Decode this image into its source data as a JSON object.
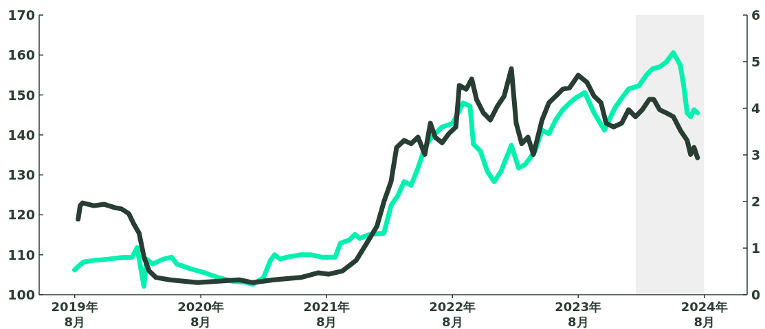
{
  "chart_data": {
    "type": "line",
    "xlim": [
      "2019-04-20",
      "2024-12-03"
    ],
    "ylim": [
      100,
      170
    ],
    "y2lim": [
      0,
      6
    ],
    "xticks": [
      {
        "value": "2019-08",
        "label": "2019年\n8月"
      },
      {
        "value": "2020-08",
        "label": "2020年\n8月"
      },
      {
        "value": "2021-08",
        "label": "2021年\n8月"
      },
      {
        "value": "2022-08",
        "label": "2022年\n8月"
      },
      {
        "value": "2023-08",
        "label": "2023年\n8月"
      },
      {
        "value": "2024-08",
        "label": "2024年\n8月"
      }
    ],
    "yticks": [
      100,
      110,
      120,
      130,
      140,
      150,
      160,
      170
    ],
    "y2ticks": [
      0,
      1,
      2,
      3,
      4,
      5,
      6
    ],
    "bands": [
      {
        "axis": "x",
        "from": "2024-01-15",
        "to": "2024-07-31",
        "color": "#efefef"
      }
    ],
    "series": [
      {
        "color": "#00f0b0",
        "x": [
          "2019-08-01",
          "2019-08-13",
          "2019-08-27",
          "2019-09-26",
          "2019-11-06",
          "2019-12-15",
          "2020-01-15",
          "2020-01-29",
          "2020-02-18",
          "2020-02-26",
          "2020-03-14",
          "2020-04-14",
          "2020-05-09",
          "2020-05-23",
          "2020-07-02",
          "2020-08-12",
          "2020-09-21",
          "2020-10-31",
          "2020-12-10",
          "2020-12-30",
          "2021-01-30",
          "2021-02-19",
          "2021-03-03",
          "2021-03-19",
          "2021-04-08",
          "2021-05-18",
          "2021-06-17",
          "2021-07-17",
          "2021-08-26",
          "2021-09-10",
          "2021-10-06",
          "2021-10-22",
          "2021-11-05",
          "2021-12-05",
          "2022-01-14",
          "2022-02-04",
          "2022-02-24",
          "2022-03-14",
          "2022-04-03",
          "2022-04-23",
          "2022-05-13",
          "2022-06-02",
          "2022-07-02",
          "2022-08-02",
          "2022-09-01",
          "2022-09-21",
          "2022-10-01",
          "2022-10-21",
          "2022-11-10",
          "2022-11-30",
          "2022-12-20",
          "2023-01-19",
          "2023-02-09",
          "2023-02-28",
          "2023-03-29",
          "2023-04-18",
          "2023-05-08",
          "2023-05-28",
          "2023-06-17",
          "2023-07-07",
          "2023-07-27",
          "2023-08-20",
          "2023-09-16",
          "2023-10-16",
          "2023-11-15",
          "2023-12-05",
          "2023-12-25",
          "2024-01-24",
          "2024-02-14",
          "2024-03-04",
          "2024-03-24",
          "2024-04-13",
          "2024-05-03",
          "2024-05-23",
          "2024-06-02",
          "2024-06-12",
          "2024-06-22",
          "2024-07-02",
          "2024-07-12"
        ],
        "values": [
          106.2,
          107.2,
          108.2,
          108.6,
          108.9,
          109.3,
          109.4,
          111.8,
          102.1,
          108.9,
          107.7,
          108.9,
          109.4,
          107.7,
          106.5,
          105.5,
          104.3,
          103.4,
          103.1,
          102.6,
          104.3,
          108.6,
          110.0,
          108.9,
          109.4,
          110.0,
          110.0,
          109.4,
          109.4,
          112.9,
          113.7,
          115.1,
          114.1,
          115.1,
          115.4,
          122.3,
          124.9,
          128.3,
          127.4,
          131.7,
          136.9,
          139.5,
          142.0,
          142.9,
          148.0,
          147.2,
          137.7,
          136.0,
          130.9,
          128.3,
          130.9,
          137.4,
          131.7,
          132.6,
          136.0,
          141.2,
          140.3,
          143.8,
          146.3,
          148.0,
          149.4,
          150.6,
          145.5,
          141.2,
          146.7,
          149.2,
          151.5,
          152.3,
          154.9,
          156.6,
          157.0,
          158.3,
          160.6,
          157.5,
          152.3,
          145.5,
          144.6,
          146.3,
          145.5
        ]
      },
      {
        "color": "#283d33",
        "axis": "y2",
        "x": [
          "2019-08-11",
          "2019-08-17",
          "2019-08-24",
          "2019-09-26",
          "2019-10-26",
          "2019-11-25",
          "2019-12-15",
          "2020-01-05",
          "2020-01-20",
          "2020-02-04",
          "2020-02-18",
          "2020-03-04",
          "2020-03-24",
          "2020-05-03",
          "2020-06-12",
          "2020-07-22",
          "2020-09-21",
          "2020-11-20",
          "2020-12-30",
          "2021-02-28",
          "2021-05-18",
          "2021-07-07",
          "2021-08-06",
          "2021-09-16",
          "2021-10-26",
          "2021-11-25",
          "2021-12-25",
          "2022-01-14",
          "2022-02-04",
          "2022-02-20",
          "2022-03-14",
          "2022-04-03",
          "2022-04-23",
          "2022-05-13",
          "2022-05-29",
          "2022-06-12",
          "2022-07-02",
          "2022-07-22",
          "2022-08-11",
          "2022-08-21",
          "2022-09-10",
          "2022-09-26",
          "2022-10-10",
          "2022-10-30",
          "2022-11-19",
          "2022-12-09",
          "2022-12-29",
          "2023-01-19",
          "2023-02-02",
          "2023-02-18",
          "2023-03-08",
          "2023-03-24",
          "2023-04-18",
          "2023-05-08",
          "2023-05-28",
          "2023-06-17",
          "2023-07-07",
          "2023-08-01",
          "2023-08-26",
          "2023-09-16",
          "2023-10-06",
          "2023-10-21",
          "2023-11-11",
          "2023-12-05",
          "2023-12-25",
          "2024-01-14",
          "2024-02-03",
          "2024-02-23",
          "2024-03-07",
          "2024-03-24",
          "2024-04-13",
          "2024-05-03",
          "2024-05-23",
          "2024-06-12",
          "2024-06-22",
          "2024-07-02",
          "2024-07-12"
        ],
        "values": [
          1.62,
          1.91,
          1.97,
          1.91,
          1.94,
          1.87,
          1.84,
          1.74,
          1.51,
          1.32,
          0.81,
          0.51,
          0.37,
          0.32,
          0.29,
          0.26,
          0.29,
          0.32,
          0.26,
          0.32,
          0.37,
          0.47,
          0.44,
          0.51,
          0.74,
          1.1,
          1.47,
          1.99,
          2.43,
          3.16,
          3.31,
          3.24,
          3.38,
          3.01,
          3.68,
          3.38,
          3.26,
          3.46,
          3.6,
          4.49,
          4.41,
          4.63,
          4.19,
          3.9,
          3.75,
          4.04,
          4.26,
          4.85,
          3.68,
          3.24,
          3.38,
          3.01,
          3.75,
          4.12,
          4.26,
          4.41,
          4.44,
          4.71,
          4.56,
          4.26,
          4.12,
          3.68,
          3.6,
          3.68,
          3.97,
          3.82,
          3.97,
          4.19,
          4.19,
          3.97,
          3.9,
          3.82,
          3.53,
          3.31,
          3.01,
          3.16,
          2.94
        ]
      }
    ]
  }
}
